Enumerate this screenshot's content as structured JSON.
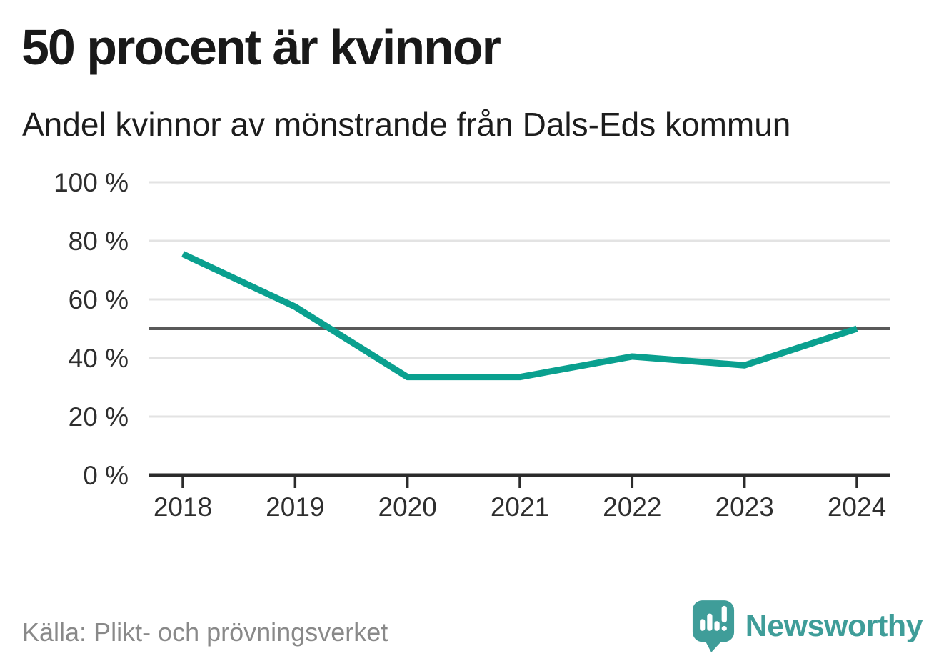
{
  "chart_data": {
    "type": "line",
    "title": "50 procent är kvinnor",
    "subtitle": "Andel kvinnor av mönstrande från Dals-Eds kommun",
    "categories": [
      "2018",
      "2019",
      "2020",
      "2021",
      "2022",
      "2023",
      "2024"
    ],
    "series": [
      {
        "name": "Andel kvinnor av mönstrande",
        "values": [
          75.5,
          57.5,
          33.5,
          33.5,
          40.5,
          37.5,
          50
        ],
        "color": "#0aa08f"
      }
    ],
    "xlabel": "",
    "ylabel": "",
    "ylim": [
      0,
      100
    ],
    "y_ticks": [
      {
        "value": 0,
        "label": "0 %"
      },
      {
        "value": 20,
        "label": "20 %"
      },
      {
        "value": 40,
        "label": "40 %"
      },
      {
        "value": 60,
        "label": "60 %"
      },
      {
        "value": 80,
        "label": "80 %"
      },
      {
        "value": 100,
        "label": "100 %"
      }
    ],
    "reference_line": {
      "value": 50,
      "color": "#595959"
    },
    "grid": "horizontal",
    "legend": "none",
    "grid_color": "#e3e3e3",
    "axis_color": "#2b2b2b",
    "tick_label_color": "#2e2e2e"
  },
  "footer": {
    "source": "Källa: Plikt- och prövningsverket",
    "brand": "Newsworthy",
    "brand_color": "#3f9d99"
  }
}
